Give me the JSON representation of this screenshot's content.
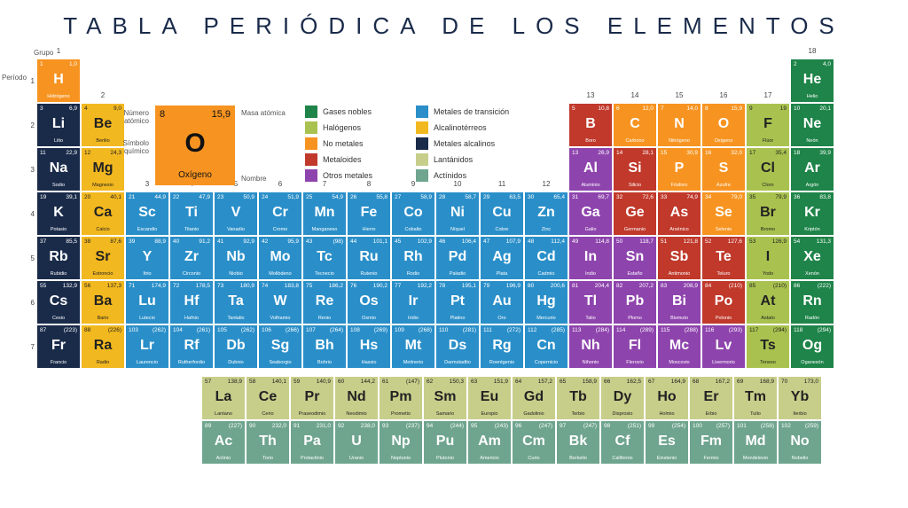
{
  "title": "TABLA PERIÓDICA DE LOS ELEMENTOS",
  "labels": {
    "grupo": "Grupo",
    "periodo": "Período"
  },
  "example": {
    "num": "8",
    "mass": "15,9",
    "sym": "O",
    "name": "Oxígeno",
    "lbl_num": "Número atómico",
    "lbl_mass": "Masa atómica",
    "lbl_sym": "Símbolo químico",
    "lbl_name": "Nombre",
    "bg": "#f79421"
  },
  "categories": {
    "noble": {
      "label": "Gases nobles",
      "color": "#1e8449"
    },
    "halogen": {
      "label": "Halógenos",
      "color": "#a9c24f"
    },
    "nonmetal": {
      "label": "No metales",
      "color": "#f79421"
    },
    "metalloid": {
      "label": "Metaloides",
      "color": "#c0392b"
    },
    "othermetal": {
      "label": "Otros metales",
      "color": "#8e44ad"
    },
    "transition": {
      "label": "Metales de transición",
      "color": "#2a8fc9"
    },
    "alkearth": {
      "label": "Alcalinotérreos",
      "color": "#f2b81f"
    },
    "alkali": {
      "label": "Metales alcalinos",
      "color": "#1a2b4a"
    },
    "lanth": {
      "label": "Lantánidos",
      "color": "#c7ce8a"
    },
    "act": {
      "label": "Actínidos",
      "color": "#6fa58e"
    }
  },
  "legend_order": [
    "noble",
    "halogen",
    "nonmetal",
    "metalloid",
    "othermetal",
    "transition",
    "alkearth",
    "alkali",
    "lanth",
    "act"
  ],
  "dark_text_cats": [
    "alkearth",
    "lanth",
    "halogen"
  ],
  "groups": [
    1,
    2,
    3,
    4,
    5,
    6,
    7,
    8,
    9,
    10,
    11,
    12,
    13,
    14,
    15,
    16,
    17,
    18
  ],
  "periods": {
    "1": [
      {
        "n": 1,
        "s": "H",
        "m": "1,0",
        "nm": "Hidrógeno",
        "c": "nonmetal"
      },
      null,
      null,
      null,
      null,
      null,
      null,
      null,
      null,
      null,
      null,
      null,
      null,
      null,
      null,
      null,
      null,
      {
        "n": 2,
        "s": "He",
        "m": "4,0",
        "nm": "Helio",
        "c": "noble"
      }
    ],
    "2": [
      {
        "n": 3,
        "s": "Li",
        "m": "6,9",
        "nm": "Litio",
        "c": "alkali"
      },
      {
        "n": 4,
        "s": "Be",
        "m": "9,0",
        "nm": "Berilio",
        "c": "alkearth"
      },
      null,
      null,
      null,
      null,
      null,
      null,
      null,
      null,
      null,
      null,
      {
        "n": 5,
        "s": "B",
        "m": "10,8",
        "nm": "Boro",
        "c": "metalloid"
      },
      {
        "n": 6,
        "s": "C",
        "m": "12,0",
        "nm": "Carbono",
        "c": "nonmetal"
      },
      {
        "n": 7,
        "s": "N",
        "m": "14,0",
        "nm": "Nitrógeno",
        "c": "nonmetal"
      },
      {
        "n": 8,
        "s": "O",
        "m": "15,9",
        "nm": "Oxígeno",
        "c": "nonmetal"
      },
      {
        "n": 9,
        "s": "F",
        "m": "19",
        "nm": "Flúor",
        "c": "halogen"
      },
      {
        "n": 10,
        "s": "Ne",
        "m": "20,1",
        "nm": "Neón",
        "c": "noble"
      }
    ],
    "3": [
      {
        "n": 11,
        "s": "Na",
        "m": "22,9",
        "nm": "Sodio",
        "c": "alkali"
      },
      {
        "n": 12,
        "s": "Mg",
        "m": "24,3",
        "nm": "Magnesio",
        "c": "alkearth"
      },
      null,
      null,
      null,
      null,
      null,
      null,
      null,
      null,
      null,
      null,
      {
        "n": 13,
        "s": "Al",
        "m": "26,9",
        "nm": "Aluminio",
        "c": "othermetal"
      },
      {
        "n": 14,
        "s": "Si",
        "m": "28,1",
        "nm": "Silicio",
        "c": "metalloid"
      },
      {
        "n": 15,
        "s": "P",
        "m": "30,9",
        "nm": "Fósforo",
        "c": "nonmetal"
      },
      {
        "n": 16,
        "s": "S",
        "m": "32,0",
        "nm": "Azufre",
        "c": "nonmetal"
      },
      {
        "n": 17,
        "s": "Cl",
        "m": "35,4",
        "nm": "Cloro",
        "c": "halogen"
      },
      {
        "n": 18,
        "s": "Ar",
        "m": "39,9",
        "nm": "Argón",
        "c": "noble"
      }
    ],
    "4": [
      {
        "n": 19,
        "s": "K",
        "m": "39,1",
        "nm": "Potasio",
        "c": "alkali"
      },
      {
        "n": 20,
        "s": "Ca",
        "m": "40,1",
        "nm": "Calcio",
        "c": "alkearth"
      },
      {
        "n": 21,
        "s": "Sc",
        "m": "44,9",
        "nm": "Escandio",
        "c": "transition"
      },
      {
        "n": 22,
        "s": "Ti",
        "m": "47,9",
        "nm": "Titanio",
        "c": "transition"
      },
      {
        "n": 23,
        "s": "V",
        "m": "50,9",
        "nm": "Vanadio",
        "c": "transition"
      },
      {
        "n": 24,
        "s": "Cr",
        "m": "51,9",
        "nm": "Cromo",
        "c": "transition"
      },
      {
        "n": 25,
        "s": "Mn",
        "m": "54,9",
        "nm": "Manganeso",
        "c": "transition"
      },
      {
        "n": 26,
        "s": "Fe",
        "m": "55,8",
        "nm": "Hierro",
        "c": "transition"
      },
      {
        "n": 27,
        "s": "Co",
        "m": "58,9",
        "nm": "Cobalto",
        "c": "transition"
      },
      {
        "n": 28,
        "s": "Ni",
        "m": "58,7",
        "nm": "Níquel",
        "c": "transition"
      },
      {
        "n": 29,
        "s": "Cu",
        "m": "63,5",
        "nm": "Cobre",
        "c": "transition"
      },
      {
        "n": 30,
        "s": "Zn",
        "m": "65,4",
        "nm": "Zinc",
        "c": "transition"
      },
      {
        "n": 31,
        "s": "Ga",
        "m": "69,7",
        "nm": "Galio",
        "c": "othermetal"
      },
      {
        "n": 32,
        "s": "Ge",
        "m": "72,6",
        "nm": "Germanio",
        "c": "metalloid"
      },
      {
        "n": 33,
        "s": "As",
        "m": "74,9",
        "nm": "Arsénico",
        "c": "metalloid"
      },
      {
        "n": 34,
        "s": "Se",
        "m": "79,0",
        "nm": "Selenio",
        "c": "nonmetal"
      },
      {
        "n": 35,
        "s": "Br",
        "m": "79,9",
        "nm": "Bromo",
        "c": "halogen"
      },
      {
        "n": 36,
        "s": "Kr",
        "m": "83,8",
        "nm": "Kriptón",
        "c": "noble"
      }
    ],
    "5": [
      {
        "n": 37,
        "s": "Rb",
        "m": "85,5",
        "nm": "Rubidio",
        "c": "alkali"
      },
      {
        "n": 38,
        "s": "Sr",
        "m": "87,6",
        "nm": "Estroncio",
        "c": "alkearth"
      },
      {
        "n": 39,
        "s": "Y",
        "m": "88,9",
        "nm": "Itrio",
        "c": "transition"
      },
      {
        "n": 40,
        "s": "Zr",
        "m": "91,2",
        "nm": "Circonio",
        "c": "transition"
      },
      {
        "n": 41,
        "s": "Nb",
        "m": "92,9",
        "nm": "Niobio",
        "c": "transition"
      },
      {
        "n": 42,
        "s": "Mo",
        "m": "95,9",
        "nm": "Molibdeno",
        "c": "transition"
      },
      {
        "n": 43,
        "s": "Tc",
        "m": "(98)",
        "nm": "Tecnecio",
        "c": "transition"
      },
      {
        "n": 44,
        "s": "Ru",
        "m": "101,1",
        "nm": "Rutenio",
        "c": "transition"
      },
      {
        "n": 45,
        "s": "Rh",
        "m": "102,9",
        "nm": "Rodio",
        "c": "transition"
      },
      {
        "n": 46,
        "s": "Pd",
        "m": "106,4",
        "nm": "Paladio",
        "c": "transition"
      },
      {
        "n": 47,
        "s": "Ag",
        "m": "107,9",
        "nm": "Plata",
        "c": "transition"
      },
      {
        "n": 48,
        "s": "Cd",
        "m": "112,4",
        "nm": "Cadmio",
        "c": "transition"
      },
      {
        "n": 49,
        "s": "In",
        "m": "114,8",
        "nm": "Indio",
        "c": "othermetal"
      },
      {
        "n": 50,
        "s": "Sn",
        "m": "118,7",
        "nm": "Estaño",
        "c": "othermetal"
      },
      {
        "n": 51,
        "s": "Sb",
        "m": "121,8",
        "nm": "Antimonio",
        "c": "metalloid"
      },
      {
        "n": 52,
        "s": "Te",
        "m": "127,6",
        "nm": "Teluro",
        "c": "metalloid"
      },
      {
        "n": 53,
        "s": "I",
        "m": "126,9",
        "nm": "Yodo",
        "c": "halogen"
      },
      {
        "n": 54,
        "s": "Xe",
        "m": "131,3",
        "nm": "Xenón",
        "c": "noble"
      }
    ],
    "6": [
      {
        "n": 55,
        "s": "Cs",
        "m": "132,9",
        "nm": "Cesio",
        "c": "alkali"
      },
      {
        "n": 56,
        "s": "Ba",
        "m": "137,3",
        "nm": "Bario",
        "c": "alkearth"
      },
      {
        "n": 71,
        "s": "Lu",
        "m": "174,9",
        "nm": "Lutecio",
        "c": "transition"
      },
      {
        "n": 72,
        "s": "Hf",
        "m": "178,5",
        "nm": "Hafnio",
        "c": "transition"
      },
      {
        "n": 73,
        "s": "Ta",
        "m": "180,9",
        "nm": "Tantalio",
        "c": "transition"
      },
      {
        "n": 74,
        "s": "W",
        "m": "183,8",
        "nm": "Volframio",
        "c": "transition"
      },
      {
        "n": 75,
        "s": "Re",
        "m": "186,2",
        "nm": "Renio",
        "c": "transition"
      },
      {
        "n": 76,
        "s": "Os",
        "m": "190,2",
        "nm": "Osmio",
        "c": "transition"
      },
      {
        "n": 77,
        "s": "Ir",
        "m": "192,2",
        "nm": "Iridio",
        "c": "transition"
      },
      {
        "n": 78,
        "s": "Pt",
        "m": "195,1",
        "nm": "Platino",
        "c": "transition"
      },
      {
        "n": 79,
        "s": "Au",
        "m": "196,9",
        "nm": "Oro",
        "c": "transition"
      },
      {
        "n": 80,
        "s": "Hg",
        "m": "200,6",
        "nm": "Mercurio",
        "c": "transition"
      },
      {
        "n": 81,
        "s": "Tl",
        "m": "204,4",
        "nm": "Talio",
        "c": "othermetal"
      },
      {
        "n": 82,
        "s": "Pb",
        "m": "207,2",
        "nm": "Plomo",
        "c": "othermetal"
      },
      {
        "n": 83,
        "s": "Bi",
        "m": "208,9",
        "nm": "Bismuto",
        "c": "othermetal"
      },
      {
        "n": 84,
        "s": "Po",
        "m": "(210)",
        "nm": "Polonio",
        "c": "metalloid"
      },
      {
        "n": 85,
        "s": "At",
        "m": "(210)",
        "nm": "Astato",
        "c": "halogen"
      },
      {
        "n": 86,
        "s": "Rn",
        "m": "(222)",
        "nm": "Radón",
        "c": "noble"
      }
    ],
    "7": [
      {
        "n": 87,
        "s": "Fr",
        "m": "(223)",
        "nm": "Francio",
        "c": "alkali"
      },
      {
        "n": 88,
        "s": "Ra",
        "m": "(226)",
        "nm": "Radio",
        "c": "alkearth"
      },
      {
        "n": 103,
        "s": "Lr",
        "m": "(262)",
        "nm": "Laurencio",
        "c": "transition"
      },
      {
        "n": 104,
        "s": "Rf",
        "m": "(261)",
        "nm": "Rutherfordio",
        "c": "transition"
      },
      {
        "n": 105,
        "s": "Db",
        "m": "(262)",
        "nm": "Dubnio",
        "c": "transition"
      },
      {
        "n": 106,
        "s": "Sg",
        "m": "(266)",
        "nm": "Seaborgio",
        "c": "transition"
      },
      {
        "n": 107,
        "s": "Bh",
        "m": "(264)",
        "nm": "Bohrio",
        "c": "transition"
      },
      {
        "n": 108,
        "s": "Hs",
        "m": "(269)",
        "nm": "Hassio",
        "c": "transition"
      },
      {
        "n": 109,
        "s": "Mt",
        "m": "(268)",
        "nm": "Meitnerio",
        "c": "transition"
      },
      {
        "n": 110,
        "s": "Ds",
        "m": "(281)",
        "nm": "Darmstadtio",
        "c": "transition"
      },
      {
        "n": 111,
        "s": "Rg",
        "m": "(272)",
        "nm": "Roentgenio",
        "c": "transition"
      },
      {
        "n": 112,
        "s": "Cn",
        "m": "(285)",
        "nm": "Copernicio",
        "c": "transition"
      },
      {
        "n": 113,
        "s": "Nh",
        "m": "(284)",
        "nm": "Nihonio",
        "c": "othermetal"
      },
      {
        "n": 114,
        "s": "Fl",
        "m": "(289)",
        "nm": "Flerovio",
        "c": "othermetal"
      },
      {
        "n": 115,
        "s": "Mc",
        "m": "(288)",
        "nm": "Moscovio",
        "c": "othermetal"
      },
      {
        "n": 116,
        "s": "Lv",
        "m": "(293)",
        "nm": "Livermorio",
        "c": "othermetal"
      },
      {
        "n": 117,
        "s": "Ts",
        "m": "(294)",
        "nm": "Teneso",
        "c": "halogen"
      },
      {
        "n": 118,
        "s": "Og",
        "m": "(294)",
        "nm": "Oganesón",
        "c": "noble"
      }
    ]
  },
  "fblock": {
    "lanth": [
      {
        "n": 57,
        "s": "La",
        "m": "138,9",
        "nm": "Lantano",
        "c": "lanth"
      },
      {
        "n": 58,
        "s": "Ce",
        "m": "140,1",
        "nm": "Cerio",
        "c": "lanth"
      },
      {
        "n": 59,
        "s": "Pr",
        "m": "140,9",
        "nm": "Praseodimio",
        "c": "lanth"
      },
      {
        "n": 60,
        "s": "Nd",
        "m": "144,2",
        "nm": "Neodimio",
        "c": "lanth"
      },
      {
        "n": 61,
        "s": "Pm",
        "m": "(147)",
        "nm": "Prometio",
        "c": "lanth"
      },
      {
        "n": 62,
        "s": "Sm",
        "m": "150,3",
        "nm": "Samario",
        "c": "lanth"
      },
      {
        "n": 63,
        "s": "Eu",
        "m": "151,9",
        "nm": "Europio",
        "c": "lanth"
      },
      {
        "n": 64,
        "s": "Gd",
        "m": "157,2",
        "nm": "Gadolinio",
        "c": "lanth"
      },
      {
        "n": 65,
        "s": "Tb",
        "m": "158,9",
        "nm": "Terbio",
        "c": "lanth"
      },
      {
        "n": 66,
        "s": "Dy",
        "m": "162,5",
        "nm": "Disprosio",
        "c": "lanth"
      },
      {
        "n": 67,
        "s": "Ho",
        "m": "164,9",
        "nm": "Holmio",
        "c": "lanth"
      },
      {
        "n": 68,
        "s": "Er",
        "m": "167,2",
        "nm": "Erbio",
        "c": "lanth"
      },
      {
        "n": 69,
        "s": "Tm",
        "m": "168,9",
        "nm": "Tulio",
        "c": "lanth"
      },
      {
        "n": 70,
        "s": "Yb",
        "m": "173,0",
        "nm": "Iterbio",
        "c": "lanth"
      }
    ],
    "act": [
      {
        "n": 89,
        "s": "Ac",
        "m": "(227)",
        "nm": "Actinio",
        "c": "act"
      },
      {
        "n": 90,
        "s": "Th",
        "m": "232,0",
        "nm": "Torio",
        "c": "act"
      },
      {
        "n": 91,
        "s": "Pa",
        "m": "231,0",
        "nm": "Protactinio",
        "c": "act"
      },
      {
        "n": 92,
        "s": "U",
        "m": "238,0",
        "nm": "Uranio",
        "c": "act"
      },
      {
        "n": 93,
        "s": "Np",
        "m": "(237)",
        "nm": "Neptunio",
        "c": "act"
      },
      {
        "n": 94,
        "s": "Pu",
        "m": "(244)",
        "nm": "Plutonio",
        "c": "act"
      },
      {
        "n": 95,
        "s": "Am",
        "m": "(243)",
        "nm": "Americio",
        "c": "act"
      },
      {
        "n": 96,
        "s": "Cm",
        "m": "(247)",
        "nm": "Curio",
        "c": "act"
      },
      {
        "n": 97,
        "s": "Bk",
        "m": "(247)",
        "nm": "Berkelio",
        "c": "act"
      },
      {
        "n": 98,
        "s": "Cf",
        "m": "(251)",
        "nm": "Californio",
        "c": "act"
      },
      {
        "n": 99,
        "s": "Es",
        "m": "(254)",
        "nm": "Einstenio",
        "c": "act"
      },
      {
        "n": 100,
        "s": "Fm",
        "m": "(257)",
        "nm": "Fermio",
        "c": "act"
      },
      {
        "n": 101,
        "s": "Md",
        "m": "(258)",
        "nm": "Mendelevio",
        "c": "act"
      },
      {
        "n": 102,
        "s": "No",
        "m": "(259)",
        "nm": "Nobelio",
        "c": "act"
      }
    ]
  }
}
